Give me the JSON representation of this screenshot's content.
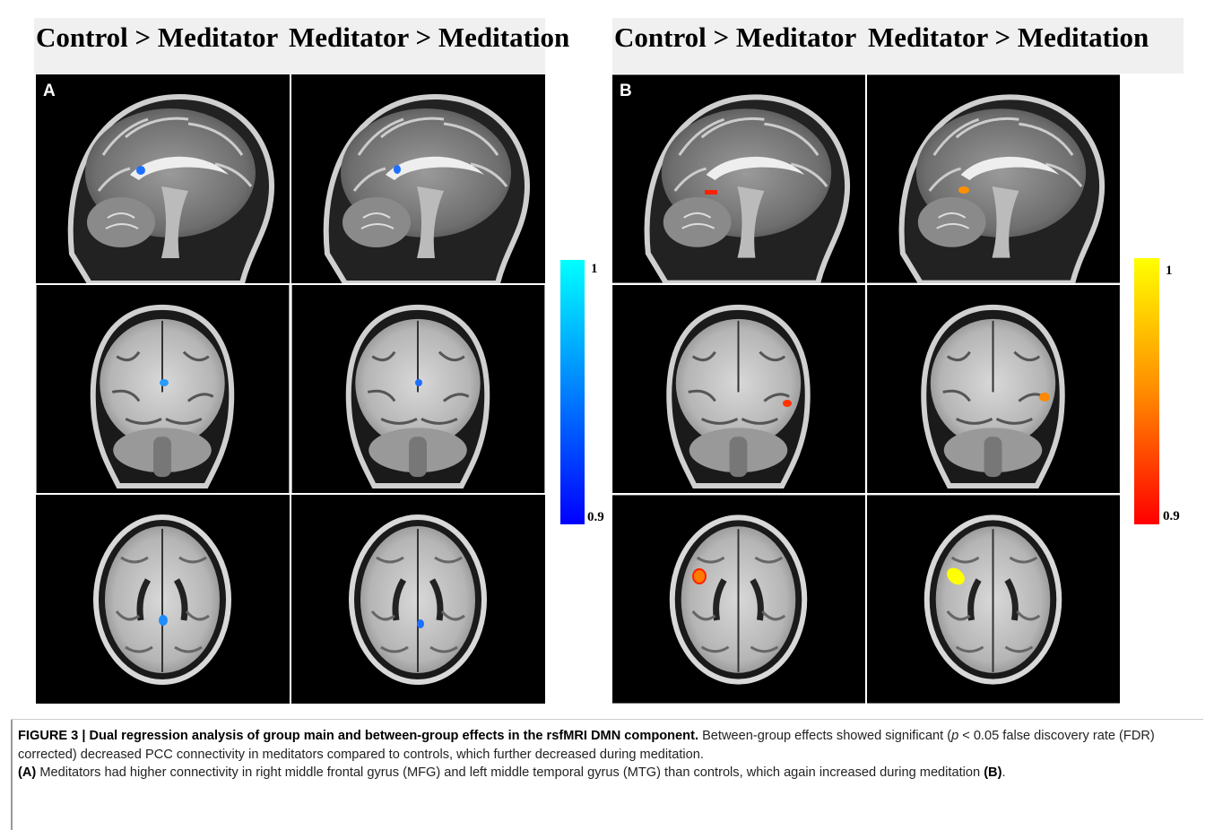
{
  "panels": [
    {
      "label": "A",
      "headers": [
        "Control > Meditator",
        "Meditator > Meditation"
      ],
      "colorbar": {
        "max": 1,
        "min": 0.9
      }
    },
    {
      "label": "B",
      "headers": [
        "Control > Meditator",
        "Meditator > Meditation"
      ],
      "colorbar": {
        "max": 1,
        "min": 0.9
      }
    }
  ],
  "caption": {
    "title": "FIGURE 3 | Dual regression analysis of group main and between-group effects in the rsfMRI DMN component.",
    "text1": "Between-group effects showed significant (",
    "p": "p",
    "text2": " < 0.05 false discovery rate (FDR) corrected) decreased PCC connectivity in meditators compared to controls, which further decreased during meditation.",
    "a_label": "(A)",
    "text3": "Meditators had higher connectivity in right middle frontal gyrus (MFG) and left middle temporal gyrus (MTG) than controls, which again increased during meditation",
    "b_label": "(B)",
    "end": "."
  }
}
